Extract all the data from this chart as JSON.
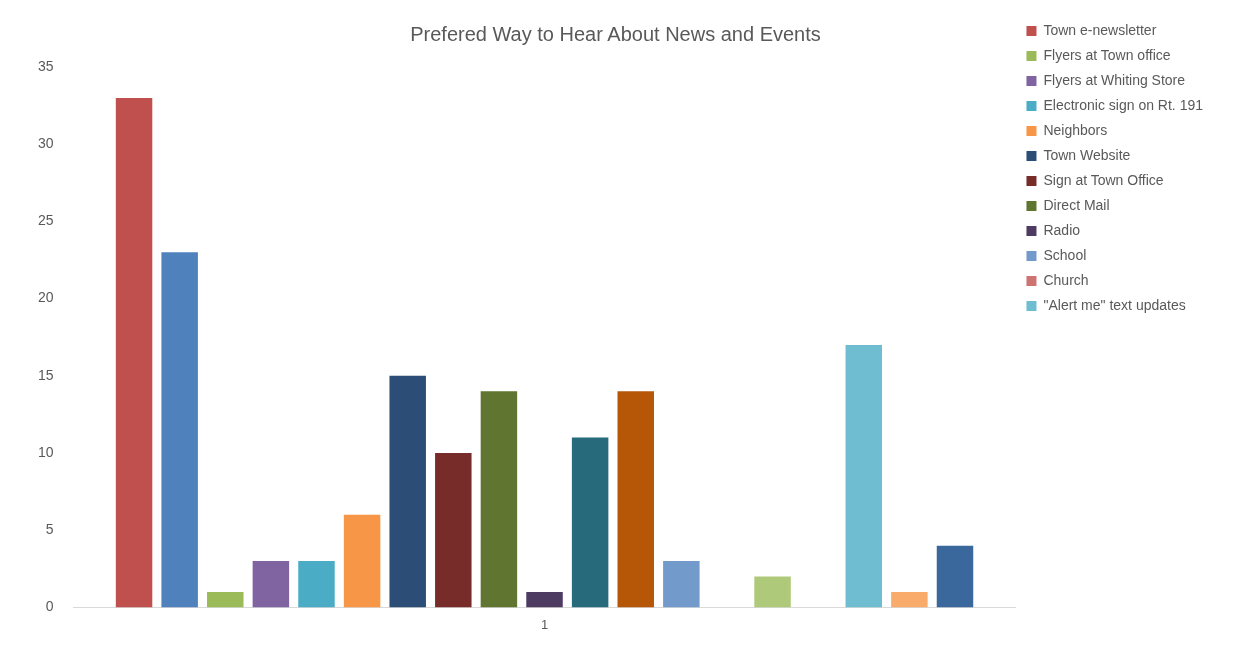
{
  "chart_data": {
    "type": "bar",
    "title": "Prefered Way to Hear About News and Events",
    "categories": [
      "1"
    ],
    "ylim": [
      0,
      35
    ],
    "yticks": [
      0,
      5,
      10,
      15,
      20,
      25,
      30,
      35
    ],
    "grid": false,
    "legend": "right",
    "series": [
      {
        "name": "Town e-newsletter",
        "color": "#c0504d",
        "values": [
          33
        ]
      },
      {
        "color": "#4f81bd",
        "values": [
          23
        ]
      },
      {
        "name": "Flyers at Town office",
        "color": "#9bbb59",
        "values": [
          1
        ]
      },
      {
        "name": "Flyers at Whiting Store",
        "color": "#8064a2",
        "values": [
          3
        ]
      },
      {
        "name": "Electronic sign on Rt. 191",
        "color": "#4bacc6",
        "values": [
          3
        ]
      },
      {
        "name": "Neighbors",
        "color": "#f79646",
        "values": [
          6
        ]
      },
      {
        "name": "Town Website",
        "color": "#2c4d75",
        "values": [
          15
        ]
      },
      {
        "name": "Sign at Town Office",
        "color": "#772c2a",
        "values": [
          10
        ]
      },
      {
        "name": "Direct Mail",
        "color": "#5f7530",
        "values": [
          14
        ]
      },
      {
        "name": "Radio",
        "color": "#4d3b62",
        "values": [
          1
        ]
      },
      {
        "color": "#276a7c",
        "values": [
          11
        ]
      },
      {
        "color": "#b65708",
        "values": [
          14
        ]
      },
      {
        "name": "School",
        "color": "#729aca",
        "values": [
          3
        ]
      },
      {
        "name": "Church",
        "color": "#cd7371",
        "values": [
          0
        ]
      },
      {
        "color": "#afc97a",
        "values": [
          2
        ]
      },
      {
        "color": "#9983b5",
        "values": [
          0
        ]
      },
      {
        "name": "\"Alert me\" text updates",
        "color": "#6fbdd1",
        "values": [
          17
        ]
      },
      {
        "color": "#f9ab6b",
        "values": [
          1
        ]
      },
      {
        "color": "#3a679c",
        "values": [
          4
        ]
      }
    ]
  }
}
